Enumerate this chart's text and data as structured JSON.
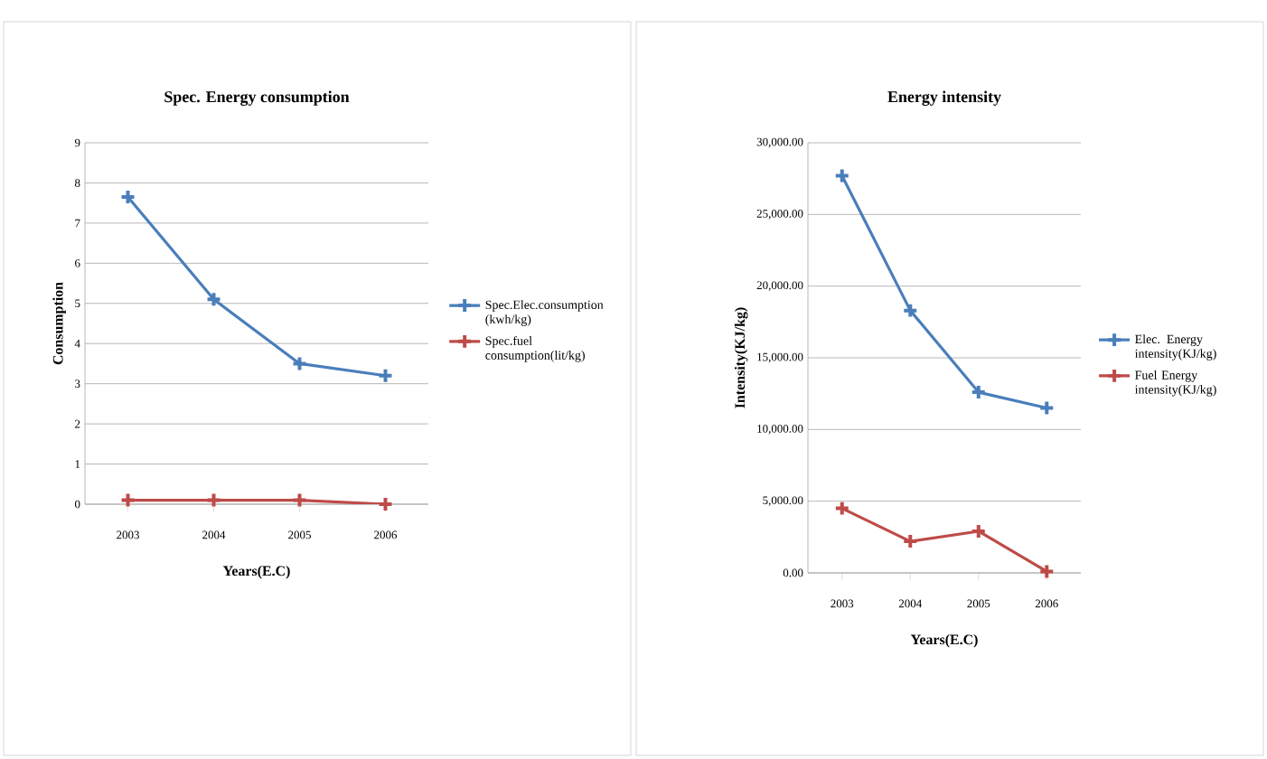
{
  "chart_data": [
    {
      "type": "line",
      "title": "Spec. Energy consumption",
      "xlabel": "Years(E.C)",
      "ylabel": "Consumption",
      "categories": [
        "2003",
        "2004",
        "2005",
        "2006"
      ],
      "series": [
        {
          "name": "Spec.Elec.consumption (kwh/kg)",
          "color": "#4a7ebb",
          "values": [
            7.65,
            5.1,
            3.5,
            3.2
          ]
        },
        {
          "name": "Spec.fuel consumption(lit/kg)",
          "color": "#be4b48",
          "values": [
            0.1,
            0.1,
            0.1,
            0.0
          ]
        }
      ],
      "ylim": [
        0,
        9
      ],
      "yticks": [
        0,
        1,
        2,
        3,
        4,
        5,
        6,
        7,
        8,
        9
      ],
      "grid": "y",
      "legend": "right",
      "marker": "cross",
      "line_style": "solid"
    },
    {
      "type": "line",
      "title": "Energy intensity",
      "xlabel": "Years(E.C)",
      "ylabel": "Intensity(KJ/kg)",
      "categories": [
        "2003",
        "2004",
        "2005",
        "2006"
      ],
      "series": [
        {
          "name": "Elec. Energy intensity(KJ/kg)",
          "color": "#4a7ebb",
          "values": [
            27700,
            18300,
            12600,
            11500
          ]
        },
        {
          "name": "Fuel Energy intensity(KJ/kg)",
          "color": "#be4b48",
          "values": [
            4500,
            2200,
            2900,
            100
          ]
        }
      ],
      "ylim": [
        0,
        30000
      ],
      "yticks": [
        {
          "value": 0,
          "label": "0.00"
        },
        {
          "value": 5000,
          "label": "5,000.00"
        },
        {
          "value": 10000,
          "label": "10,000.00"
        },
        {
          "value": 15000,
          "label": "15,000.00"
        },
        {
          "value": 20000,
          "label": "20,000.00"
        },
        {
          "value": 25000,
          "label": "25,000.00"
        },
        {
          "value": 30000,
          "label": "30,000.00"
        }
      ],
      "grid": "y",
      "legend": "right",
      "marker": "cross",
      "line_style": "solid"
    }
  ]
}
